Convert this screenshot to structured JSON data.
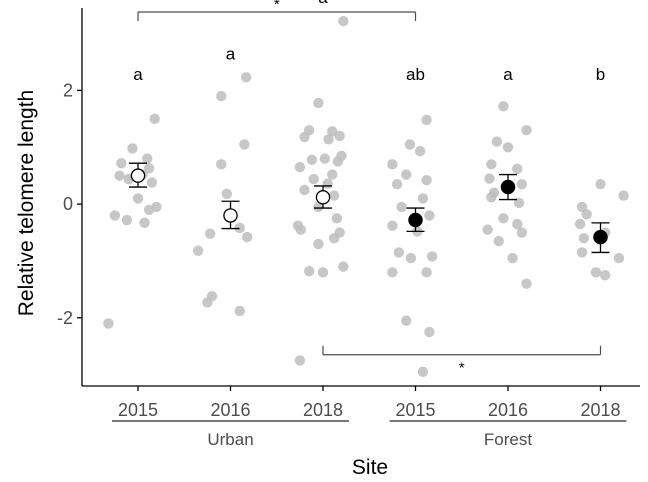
{
  "chart_data": {
    "type": "scatter",
    "xlabel": "Site",
    "ylabel": "Relative telomere length",
    "ylim": [
      -3.2,
      3.45
    ],
    "yticks": [
      -2,
      0,
      2
    ],
    "ytick_labels": [
      "-2",
      "0",
      "2"
    ],
    "grid": false,
    "legend": "none",
    "categories": [
      "2015",
      "2016",
      "2018",
      "2015",
      "2016",
      "2018"
    ],
    "groups": [
      {
        "label": "Urban",
        "from": 0,
        "to": 2
      },
      {
        "label": "Forest",
        "from": 3,
        "to": 5
      }
    ],
    "colors": {
      "raw_points": "#bdbdbd",
      "urban_mean_fill": "#ffffff",
      "forest_mean_fill": "#000000",
      "axis": "#000000"
    },
    "means": [
      {
        "site": "Urban",
        "year": "2015",
        "mean": 0.5,
        "lower": 0.3,
        "upper": 0.72,
        "filled": false,
        "letter": "a"
      },
      {
        "site": "Urban",
        "year": "2016",
        "mean": -0.2,
        "lower": -0.43,
        "upper": 0.05,
        "filled": false,
        "letter": "a"
      },
      {
        "site": "Urban",
        "year": "2018",
        "mean": 0.12,
        "lower": -0.07,
        "upper": 0.32,
        "filled": false,
        "letter": "a"
      },
      {
        "site": "Forest",
        "year": "2015",
        "mean": -0.28,
        "lower": -0.48,
        "upper": -0.07,
        "filled": true,
        "letter": "ab"
      },
      {
        "site": "Forest",
        "year": "2016",
        "mean": 0.3,
        "lower": 0.08,
        "upper": 0.52,
        "filled": true,
        "letter": "a"
      },
      {
        "site": "Forest",
        "year": "2018",
        "mean": -0.58,
        "lower": -0.85,
        "upper": -0.33,
        "filled": true,
        "letter": "b"
      }
    ],
    "raw_points": [
      [
        [
          0.18,
          1.5
        ],
        [
          -0.06,
          0.98
        ],
        [
          0.1,
          0.8
        ],
        [
          -0.18,
          0.72
        ],
        [
          0.12,
          0.63
        ],
        [
          -0.2,
          0.5
        ],
        [
          0.05,
          0.52
        ],
        [
          0.15,
          0.38
        ],
        [
          -0.1,
          0.44
        ],
        [
          0.0,
          0.1
        ],
        [
          0.2,
          -0.05
        ],
        [
          0.12,
          -0.1
        ],
        [
          -0.25,
          -0.2
        ],
        [
          -0.12,
          -0.28
        ],
        [
          0.07,
          -0.33
        ],
        [
          -0.32,
          -2.1
        ]
      ],
      [
        [
          0.17,
          2.23
        ],
        [
          -0.1,
          1.9
        ],
        [
          0.15,
          1.05
        ],
        [
          -0.1,
          0.7
        ],
        [
          -0.04,
          0.18
        ],
        [
          0.1,
          -0.42
        ],
        [
          -0.22,
          -0.52
        ],
        [
          0.18,
          -0.58
        ],
        [
          -0.35,
          -0.82
        ],
        [
          -0.2,
          -1.62
        ],
        [
          -0.25,
          -1.73
        ],
        [
          0.1,
          -1.88
        ]
      ],
      [
        [
          0.22,
          3.22
        ],
        [
          -0.05,
          1.78
        ],
        [
          0.1,
          1.28
        ],
        [
          -0.15,
          1.3
        ],
        [
          0.18,
          1.2
        ],
        [
          -0.2,
          1.18
        ],
        [
          0.06,
          1.14
        ],
        [
          0.2,
          0.85
        ],
        [
          0.02,
          0.8
        ],
        [
          -0.12,
          0.78
        ],
        [
          0.16,
          0.75
        ],
        [
          -0.25,
          0.65
        ],
        [
          0.1,
          0.52
        ],
        [
          -0.1,
          0.44
        ],
        [
          0.05,
          0.36
        ],
        [
          -0.2,
          0.25
        ],
        [
          0.12,
          0.15
        ],
        [
          -0.05,
          -0.05
        ],
        [
          0.15,
          -0.25
        ],
        [
          -0.27,
          -0.38
        ],
        [
          -0.24,
          -0.45
        ],
        [
          0.18,
          -0.5
        ],
        [
          0.12,
          -0.6
        ],
        [
          -0.05,
          -0.7
        ],
        [
          0.22,
          -1.1
        ],
        [
          -0.15,
          -1.18
        ],
        [
          0.0,
          -1.2
        ],
        [
          -0.25,
          -2.75
        ]
      ],
      [
        [
          0.12,
          1.48
        ],
        [
          -0.06,
          1.05
        ],
        [
          0.05,
          0.93
        ],
        [
          -0.25,
          0.7
        ],
        [
          -0.1,
          0.52
        ],
        [
          0.12,
          0.42
        ],
        [
          -0.2,
          0.35
        ],
        [
          0.08,
          0.1
        ],
        [
          -0.15,
          -0.05
        ],
        [
          0.15,
          -0.2
        ],
        [
          -0.25,
          -0.38
        ],
        [
          0.02,
          -0.48
        ],
        [
          -0.18,
          -0.85
        ],
        [
          0.18,
          -0.92
        ],
        [
          -0.05,
          -0.95
        ],
        [
          -0.25,
          -1.2
        ],
        [
          0.12,
          -1.2
        ],
        [
          -0.1,
          -2.05
        ],
        [
          0.15,
          -2.25
        ],
        [
          0.08,
          -2.95
        ]
      ],
      [
        [
          -0.05,
          1.72
        ],
        [
          0.2,
          1.3
        ],
        [
          -0.12,
          1.1
        ],
        [
          0.0,
          1.0
        ],
        [
          -0.18,
          0.7
        ],
        [
          0.1,
          0.62
        ],
        [
          -0.2,
          0.45
        ],
        [
          0.15,
          0.35
        ],
        [
          -0.15,
          0.2
        ],
        [
          -0.18,
          0.12
        ],
        [
          0.12,
          0.02
        ],
        [
          -0.05,
          -0.25
        ],
        [
          0.1,
          -0.35
        ],
        [
          -0.22,
          -0.45
        ],
        [
          0.15,
          -0.5
        ],
        [
          -0.1,
          -0.65
        ],
        [
          0.05,
          -0.95
        ],
        [
          0.2,
          -1.4
        ]
      ],
      [
        [
          0.25,
          0.15
        ],
        [
          0.0,
          0.35
        ],
        [
          -0.2,
          -0.05
        ],
        [
          -0.15,
          -0.18
        ],
        [
          -0.22,
          -0.35
        ],
        [
          0.05,
          -0.5
        ],
        [
          -0.18,
          -0.6
        ],
        [
          0.2,
          -0.95
        ],
        [
          -0.05,
          -1.2
        ],
        [
          -0.2,
          -0.85
        ],
        [
          0.05,
          -1.25
        ]
      ]
    ],
    "comparisons": [
      {
        "from": 0,
        "to": 3,
        "y": 3.38,
        "label": "*",
        "tick": "down"
      },
      {
        "from": 2,
        "to": 5,
        "y": -2.65,
        "label": "*",
        "tick": "up"
      }
    ]
  }
}
